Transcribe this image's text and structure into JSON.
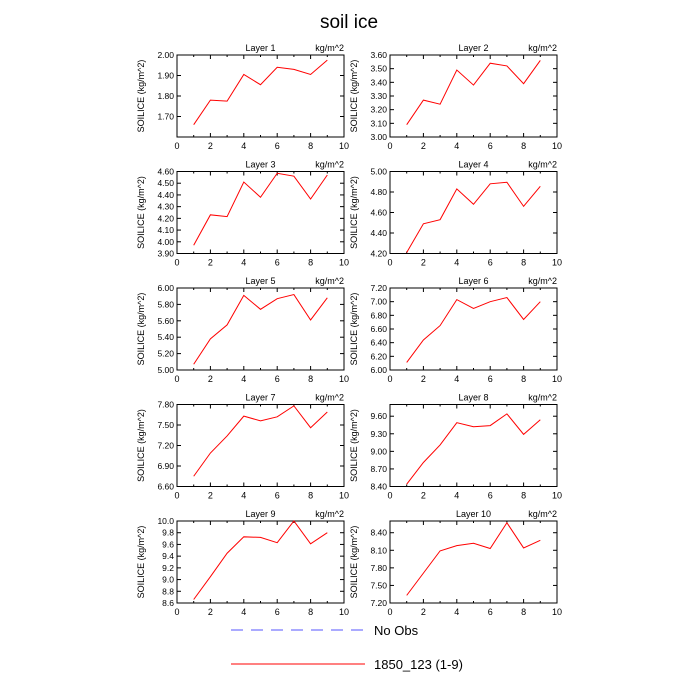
{
  "title": "soil ice",
  "legend": {
    "entries": [
      {
        "label": "No Obs",
        "color": "#5555ff",
        "style": "dashed"
      },
      {
        "label": "1850_123 (1-9)",
        "color": "#ff0000",
        "style": "solid"
      }
    ]
  },
  "chart_data": [
    {
      "type": "line",
      "title": "Layer 1",
      "units": "kg/m^2",
      "ylabel": "SOILICE  (kg/m^2)",
      "xlim": [
        0,
        10
      ],
      "xticks": [
        0,
        2,
        4,
        6,
        8,
        10
      ],
      "ylim": [
        1.6,
        2.0
      ],
      "yticks": [
        1.7,
        1.8,
        1.9,
        2.0
      ],
      "ytick_labels": [
        "1.70",
        "1.80",
        "1.90",
        "2.00"
      ],
      "x": [
        1,
        2,
        3,
        4,
        5,
        6,
        7,
        8,
        9
      ],
      "series": [
        {
          "name": "1850_123 (1-9)",
          "color": "#ff0000",
          "values": [
            1.66,
            1.78,
            1.775,
            1.905,
            1.855,
            1.94,
            1.93,
            1.905,
            1.975
          ]
        }
      ]
    },
    {
      "type": "line",
      "title": "Layer 2",
      "units": "kg/m^2",
      "ylabel": "SOILICE  (kg/m^2)",
      "xlim": [
        0,
        10
      ],
      "xticks": [
        0,
        2,
        4,
        6,
        8,
        10
      ],
      "ylim": [
        3.0,
        3.6
      ],
      "yticks": [
        3.0,
        3.1,
        3.2,
        3.3,
        3.4,
        3.5,
        3.6
      ],
      "ytick_labels": [
        "3.00",
        "3.10",
        "3.20",
        "3.30",
        "3.40",
        "3.50",
        "3.60"
      ],
      "x": [
        1,
        2,
        3,
        4,
        5,
        6,
        7,
        8,
        9
      ],
      "series": [
        {
          "name": "1850_123 (1-9)",
          "color": "#ff0000",
          "values": [
            3.09,
            3.27,
            3.24,
            3.49,
            3.38,
            3.54,
            3.52,
            3.39,
            3.56
          ]
        }
      ]
    },
    {
      "type": "line",
      "title": "Layer 3",
      "units": "kg/m^2",
      "ylabel": "SOILICE  (kg/m^2)",
      "xlim": [
        0,
        10
      ],
      "xticks": [
        0,
        2,
        4,
        6,
        8,
        10
      ],
      "ylim": [
        3.9,
        4.6
      ],
      "yticks": [
        3.9,
        4.0,
        4.1,
        4.2,
        4.3,
        4.4,
        4.5,
        4.6
      ],
      "ytick_labels": [
        "3.90",
        "4.00",
        "4.10",
        "4.20",
        "4.30",
        "4.40",
        "4.50",
        "4.60"
      ],
      "x": [
        1,
        2,
        3,
        4,
        5,
        6,
        7,
        8,
        9
      ],
      "series": [
        {
          "name": "1850_123 (1-9)",
          "color": "#ff0000",
          "values": [
            3.97,
            4.23,
            4.215,
            4.51,
            4.38,
            4.585,
            4.56,
            4.365,
            4.57
          ]
        }
      ]
    },
    {
      "type": "line",
      "title": "Layer 4",
      "units": "kg/m^2",
      "ylabel": "SOILICE  (kg/m^2)",
      "xlim": [
        0,
        10
      ],
      "xticks": [
        0,
        2,
        4,
        6,
        8,
        10
      ],
      "ylim": [
        4.2,
        5.0
      ],
      "yticks": [
        4.2,
        4.4,
        4.6,
        4.8,
        5.0
      ],
      "ytick_labels": [
        "4.20",
        "4.40",
        "4.60",
        "4.80",
        "5.00"
      ],
      "x": [
        1,
        2,
        3,
        4,
        5,
        6,
        7,
        8,
        9
      ],
      "series": [
        {
          "name": "1850_123 (1-9)",
          "color": "#ff0000",
          "values": [
            4.21,
            4.49,
            4.53,
            4.83,
            4.68,
            4.88,
            4.895,
            4.66,
            4.855
          ]
        }
      ]
    },
    {
      "type": "line",
      "title": "Layer 5",
      "units": "kg/m^2",
      "ylabel": "SOILICE  (kg/m^2)",
      "xlim": [
        0,
        10
      ],
      "xticks": [
        0,
        2,
        4,
        6,
        8,
        10
      ],
      "ylim": [
        5.0,
        6.0
      ],
      "yticks": [
        5.0,
        5.2,
        5.4,
        5.6,
        5.8,
        6.0
      ],
      "ytick_labels": [
        "5.00",
        "5.20",
        "5.40",
        "5.60",
        "5.80",
        "6.00"
      ],
      "x": [
        1,
        2,
        3,
        4,
        5,
        6,
        7,
        8,
        9
      ],
      "series": [
        {
          "name": "1850_123 (1-9)",
          "color": "#ff0000",
          "values": [
            5.07,
            5.38,
            5.55,
            5.91,
            5.74,
            5.87,
            5.92,
            5.61,
            5.88
          ]
        }
      ]
    },
    {
      "type": "line",
      "title": "Layer 6",
      "units": "kg/m^2",
      "ylabel": "SOILICE  (kg/m^2)",
      "xlim": [
        0,
        10
      ],
      "xticks": [
        0,
        2,
        4,
        6,
        8,
        10
      ],
      "ylim": [
        6.0,
        7.2
      ],
      "yticks": [
        6.0,
        6.2,
        6.4,
        6.6,
        6.8,
        7.0,
        7.2
      ],
      "ytick_labels": [
        "6.00",
        "6.20",
        "6.40",
        "6.60",
        "6.80",
        "7.00",
        "7.20"
      ],
      "x": [
        1,
        2,
        3,
        4,
        5,
        6,
        7,
        8,
        9
      ],
      "series": [
        {
          "name": "1850_123 (1-9)",
          "color": "#ff0000",
          "values": [
            6.11,
            6.44,
            6.65,
            7.03,
            6.9,
            7.0,
            7.06,
            6.74,
            7.0
          ]
        }
      ]
    },
    {
      "type": "line",
      "title": "Layer 7",
      "units": "kg/m^2",
      "ylabel": "SOILICE  (kg/m^2)",
      "xlim": [
        0,
        10
      ],
      "xticks": [
        0,
        2,
        4,
        6,
        8,
        10
      ],
      "ylim": [
        6.6,
        7.8
      ],
      "yticks": [
        6.6,
        6.9,
        7.2,
        7.5,
        7.8
      ],
      "ytick_labels": [
        "6.60",
        "6.90",
        "7.20",
        "7.50",
        "7.80"
      ],
      "x": [
        1,
        2,
        3,
        4,
        5,
        6,
        7,
        8,
        9
      ],
      "series": [
        {
          "name": "1850_123 (1-9)",
          "color": "#ff0000",
          "values": [
            6.75,
            7.09,
            7.34,
            7.63,
            7.56,
            7.62,
            7.78,
            7.46,
            7.69
          ]
        }
      ]
    },
    {
      "type": "line",
      "title": "Layer 8",
      "units": "kg/m^2",
      "ylabel": "SOILICE  (kg/m^2)",
      "xlim": [
        0,
        10
      ],
      "xticks": [
        0,
        2,
        4,
        6,
        8,
        10
      ],
      "ylim": [
        8.4,
        9.8
      ],
      "yticks": [
        8.4,
        8.7,
        9.0,
        9.3,
        9.6
      ],
      "ytick_labels": [
        "8.40",
        "8.70",
        "9.00",
        "9.30",
        "9.60"
      ],
      "x": [
        1,
        2,
        3,
        4,
        5,
        6,
        7,
        8,
        9
      ],
      "series": [
        {
          "name": "1850_123 (1-9)",
          "color": "#ff0000",
          "values": [
            8.44,
            8.81,
            9.11,
            9.49,
            9.42,
            9.44,
            9.64,
            9.29,
            9.54
          ]
        }
      ]
    },
    {
      "type": "line",
      "title": "Layer 9",
      "units": "kg/m^2",
      "ylabel": "SOILICE  (kg/m^2)",
      "xlim": [
        0,
        10
      ],
      "xticks": [
        0,
        2,
        4,
        6,
        8,
        10
      ],
      "ylim": [
        8.6,
        10.0
      ],
      "yticks": [
        8.6,
        8.8,
        9.0,
        9.2,
        9.4,
        9.6,
        9.8,
        10.0
      ],
      "ytick_labels": [
        "8.6",
        "8.8",
        "9.0",
        "9.2",
        "9.4",
        "9.6",
        "9.8",
        "10.0"
      ],
      "x": [
        1,
        2,
        3,
        4,
        5,
        6,
        7,
        8,
        9
      ],
      "series": [
        {
          "name": "1850_123 (1-9)",
          "color": "#ff0000",
          "values": [
            8.66,
            9.05,
            9.45,
            9.73,
            9.72,
            9.63,
            10.0,
            9.61,
            9.8
          ]
        }
      ]
    },
    {
      "type": "line",
      "title": "Layer 10",
      "units": "kg/m^2",
      "ylabel": "SOILICE  (kg/m^2)",
      "xlim": [
        0,
        10
      ],
      "xticks": [
        0,
        2,
        4,
        6,
        8,
        10
      ],
      "ylim": [
        7.2,
        8.6
      ],
      "yticks": [
        7.2,
        7.5,
        7.8,
        8.1,
        8.4
      ],
      "ytick_labels": [
        "7.20",
        "7.50",
        "7.80",
        "8.10",
        "8.40"
      ],
      "x": [
        1,
        2,
        3,
        4,
        5,
        6,
        7,
        8,
        9
      ],
      "series": [
        {
          "name": "1850_123 (1-9)",
          "color": "#ff0000",
          "values": [
            7.33,
            7.71,
            8.09,
            8.18,
            8.22,
            8.13,
            8.57,
            8.14,
            8.27
          ]
        }
      ]
    }
  ]
}
